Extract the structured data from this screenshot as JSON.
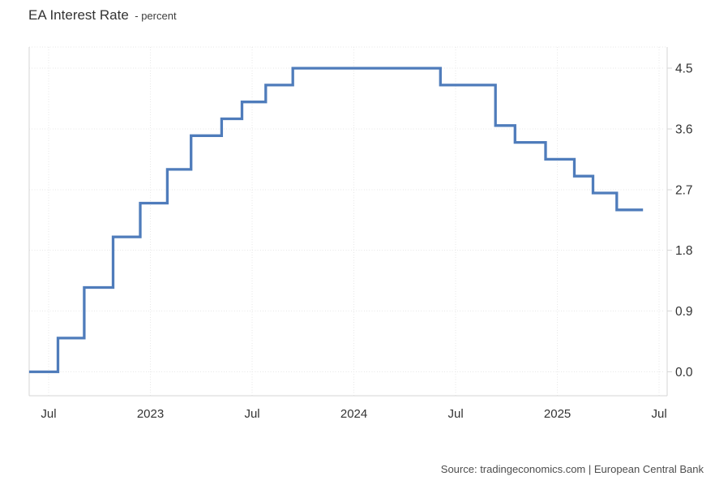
{
  "title": {
    "text": "EA Interest Rate",
    "subtitle": "- percent"
  },
  "source": {
    "text": "Source: tradingeconomics.com | European Central Bank"
  },
  "chart_data": {
    "type": "line",
    "step": true,
    "title": "EA Interest Rate",
    "subtitle": "- percent",
    "ylabel": "percent",
    "xlabel": "",
    "grid": true,
    "legend_position": "none",
    "line_color": "#4f7cbb",
    "y_axis": {
      "position": "right",
      "range": [
        0.0,
        4.5
      ],
      "ticks": [
        {
          "value": 0.0,
          "label": "0.0"
        },
        {
          "value": 0.9,
          "label": "0.9"
        },
        {
          "value": 1.8,
          "label": "1.8"
        },
        {
          "value": 2.7,
          "label": "2.7"
        },
        {
          "value": 3.6,
          "label": "3.6"
        },
        {
          "value": 4.5,
          "label": "4.5"
        }
      ]
    },
    "x_axis": {
      "unit": "months since Jul 2022",
      "ticks": [
        {
          "m": 0,
          "label": "Jul"
        },
        {
          "m": 6,
          "label": "2023"
        },
        {
          "m": 12,
          "label": "Jul"
        },
        {
          "m": 18,
          "label": "2024"
        },
        {
          "m": 24,
          "label": "Jul"
        },
        {
          "m": 30,
          "label": "2025"
        },
        {
          "m": 36,
          "label": "Jul"
        }
      ]
    },
    "series": [
      {
        "name": "EA Interest Rate",
        "color": "#4f7cbb",
        "points": [
          {
            "date": "2022-05",
            "m": -1.15,
            "value": 0.0
          },
          {
            "date": "2022-07",
            "m": 0.55,
            "value": 0.5
          },
          {
            "date": "2022-09",
            "m": 2.1,
            "value": 1.25
          },
          {
            "date": "2022-11",
            "m": 3.8,
            "value": 2.0
          },
          {
            "date": "2022-12",
            "m": 5.4,
            "value": 2.5
          },
          {
            "date": "2023-02",
            "m": 7.0,
            "value": 3.0
          },
          {
            "date": "2023-03",
            "m": 8.4,
            "value": 3.5
          },
          {
            "date": "2023-05",
            "m": 10.2,
            "value": 3.75
          },
          {
            "date": "2023-06",
            "m": 11.4,
            "value": 4.0
          },
          {
            "date": "2023-08",
            "m": 12.8,
            "value": 4.25
          },
          {
            "date": "2023-09",
            "m": 14.4,
            "value": 4.5
          },
          {
            "date": "2024-06",
            "m": 23.1,
            "value": 4.25
          },
          {
            "date": "2024-09",
            "m": 26.35,
            "value": 3.65
          },
          {
            "date": "2024-10",
            "m": 27.5,
            "value": 3.4
          },
          {
            "date": "2024-12",
            "m": 29.3,
            "value": 3.15
          },
          {
            "date": "2025-02",
            "m": 31.0,
            "value": 2.9
          },
          {
            "date": "2025-03",
            "m": 32.1,
            "value": 2.65
          },
          {
            "date": "2025-04",
            "m": 33.5,
            "value": 2.4
          },
          {
            "date": "2025-06",
            "m": 35.05,
            "value": 2.4
          }
        ]
      }
    ]
  }
}
